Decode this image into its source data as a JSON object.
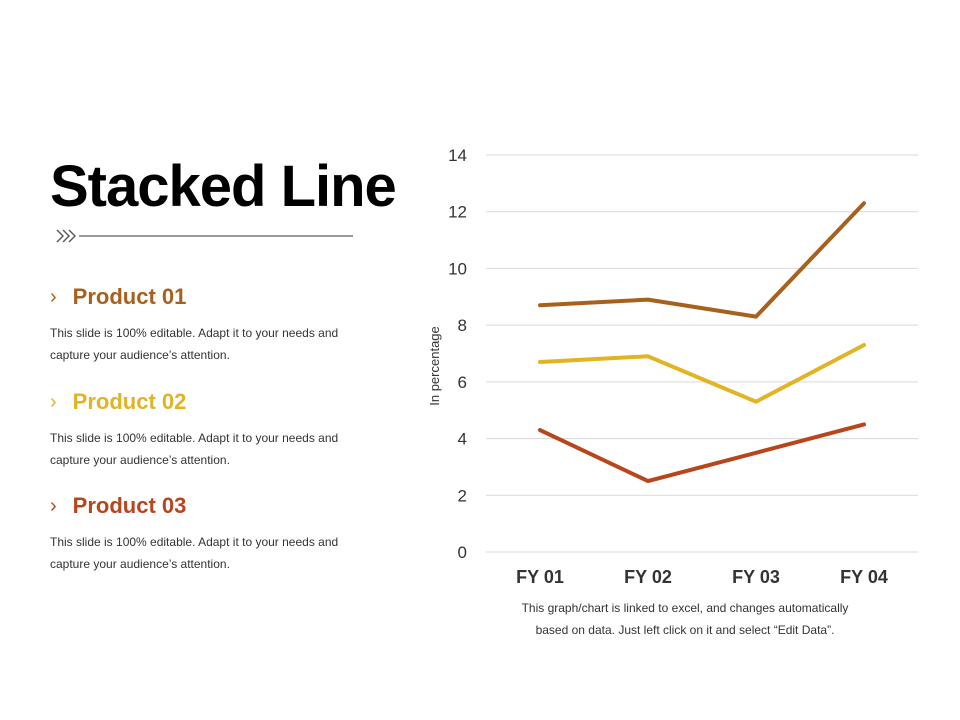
{
  "slide": {
    "title": "Stacked Line",
    "footnote_line1": "This graph/chart is linked to excel, and changes automatically",
    "footnote_line2": "based on data. Just left click on it and select “Edit Data”."
  },
  "products": [
    {
      "chevron": "›",
      "name": "Product 01",
      "color": "#A8611C",
      "desc_line1": "This slide is 100% editable. Adapt it to your needs and",
      "desc_line2": "capture your audience’s attention."
    },
    {
      "chevron": "›",
      "name": "Product 02",
      "color": "#E2B322",
      "desc_line1": "This slide is 100% editable. Adapt it to your needs and",
      "desc_line2": "capture your audience’s attention."
    },
    {
      "chevron": "›",
      "name": "Product 03",
      "color": "#B8451C",
      "desc_line1": "This slide is 100% editable. Adapt it to your needs and",
      "desc_line2": "capture your audience’s attention."
    }
  ],
  "chart_data": {
    "type": "line",
    "title": "",
    "xlabel": "",
    "ylabel": "In percentage",
    "categories": [
      "FY 01",
      "FY 02",
      "FY 03",
      "FY 04"
    ],
    "ylim": [
      0,
      14
    ],
    "yticks": [
      0,
      2,
      4,
      6,
      8,
      10,
      12,
      14
    ],
    "grid": true,
    "series": [
      {
        "name": "Product 01",
        "color": "#A8611C",
        "values": [
          8.7,
          8.9,
          8.3,
          12.3
        ]
      },
      {
        "name": "Product 02",
        "color": "#E2B322",
        "values": [
          6.7,
          6.9,
          5.3,
          7.3
        ]
      },
      {
        "name": "Product 03",
        "color": "#B8451C",
        "values": [
          4.3,
          2.5,
          3.5,
          4.5
        ]
      }
    ]
  }
}
